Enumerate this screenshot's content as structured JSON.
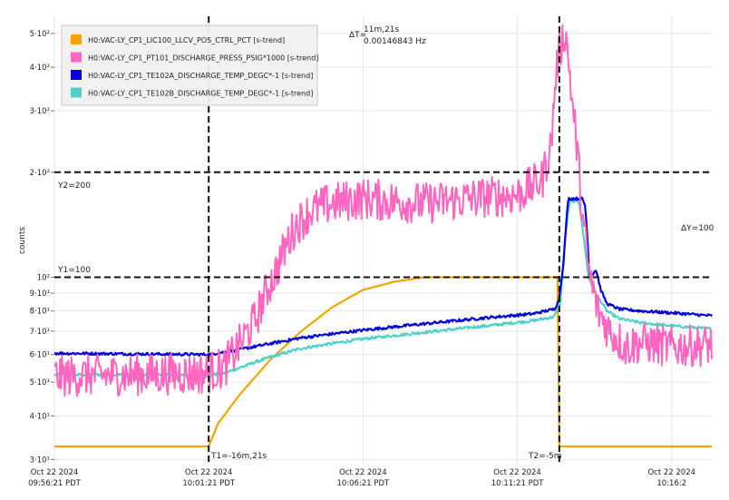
{
  "chart_data": {
    "type": "line",
    "ylabel": "counts",
    "y_scale": "log",
    "ylim": [
      29,
      560
    ],
    "xlim_minutes": [
      0,
      21.3
    ],
    "grid": true,
    "legend_position": "top-left",
    "y_ticks": [
      {
        "value": 30,
        "label": "3·10¹"
      },
      {
        "value": 40,
        "label": "4·10¹"
      },
      {
        "value": 50,
        "label": "5·10¹"
      },
      {
        "value": 60,
        "label": "6·10¹"
      },
      {
        "value": 70,
        "label": "7·10¹"
      },
      {
        "value": 80,
        "label": "8·10¹"
      },
      {
        "value": 90,
        "label": "9·10¹"
      },
      {
        "value": 100,
        "label": "10²"
      },
      {
        "value": 200,
        "label": "2·10²"
      },
      {
        "value": 300,
        "label": "3·10²"
      },
      {
        "value": 400,
        "label": "4·10²"
      },
      {
        "value": 500,
        "label": "5·10²"
      }
    ],
    "x_ticks": [
      {
        "minute": 0,
        "line1": "Oct 22 2024",
        "line2": "09:56:21 PDT"
      },
      {
        "minute": 5,
        "line1": "Oct 22 2024",
        "line2": "10:01:21 PDT"
      },
      {
        "minute": 10,
        "line1": "Oct 22 2024",
        "line2": "10:06:21 PDT"
      },
      {
        "minute": 15,
        "line1": "Oct 22 2024",
        "line2": "10:11:21 PDT"
      },
      {
        "minute": 20,
        "line1": "Oct 22 2024",
        "line2": "10:16:2"
      }
    ],
    "cursors": {
      "t1": {
        "minute": 5,
        "label": "T1=-16m,21s"
      },
      "t2": {
        "minute": 16.36,
        "label": "T2=-5m"
      },
      "y1": {
        "value": 100,
        "label": "Y1=100"
      },
      "y2": {
        "value": 200,
        "label": "Y2=200"
      },
      "delta_t_label": "ΔT=",
      "delta_t_value": "11m,21s",
      "delta_t_freq": "0.00146843 Hz",
      "delta_y_label": "ΔY=100"
    },
    "series": [
      {
        "name": "H0:VAC-LY_CP1_LIC100_LLCV_POS_CTRL_PCT [s-trend]",
        "color": "#f5a300",
        "points": [
          [
            0,
            32.7
          ],
          [
            5,
            32.7
          ],
          [
            5.3,
            38
          ],
          [
            6,
            46
          ],
          [
            7,
            58
          ],
          [
            8,
            70
          ],
          [
            9,
            82
          ],
          [
            10,
            92
          ],
          [
            11,
            97
          ],
          [
            12,
            100
          ],
          [
            16.3,
            100
          ],
          [
            16.36,
            32.7
          ],
          [
            21.3,
            32.7
          ]
        ]
      },
      {
        "name": "H0:VAC-LY_CP1_PT101_DISCHARGE_PRESS_PSIG*1000 [s-trend]",
        "color": "#ff66c0",
        "noise": 0.06,
        "points": [
          [
            0,
            52
          ],
          [
            4.9,
            53
          ],
          [
            5.5,
            55
          ],
          [
            6,
            64
          ],
          [
            6.5,
            75
          ],
          [
            7.2,
            105
          ],
          [
            7.8,
            140
          ],
          [
            8.3,
            155
          ],
          [
            9,
            163
          ],
          [
            10,
            168
          ],
          [
            11,
            165
          ],
          [
            12,
            163
          ],
          [
            13,
            166
          ],
          [
            14,
            170
          ],
          [
            15,
            172
          ],
          [
            15.8,
            190
          ],
          [
            16.1,
            240
          ],
          [
            16.3,
            420
          ],
          [
            16.55,
            510
          ],
          [
            16.8,
            300
          ],
          [
            17.1,
            150
          ],
          [
            17.3,
            105
          ],
          [
            17.6,
            80
          ],
          [
            18,
            70
          ],
          [
            18.5,
            63
          ],
          [
            19,
            65
          ],
          [
            20,
            63
          ],
          [
            21.3,
            64
          ]
        ]
      },
      {
        "name": "H0:VAC-LY_CP1_TE102A_DISCHARGE_TEMP_DEGC*-1 [s-trend]",
        "color": "#0000dd",
        "noise": 0.004,
        "points": [
          [
            0,
            60.5
          ],
          [
            5,
            60
          ],
          [
            5.5,
            61
          ],
          [
            6,
            62
          ],
          [
            7,
            64.5
          ],
          [
            8,
            67
          ],
          [
            10,
            70.5
          ],
          [
            12,
            73.5
          ],
          [
            14,
            76.5
          ],
          [
            15.5,
            78.5
          ],
          [
            16.2,
            81
          ],
          [
            16.35,
            86
          ],
          [
            16.5,
            110
          ],
          [
            16.65,
            168
          ],
          [
            17.1,
            168
          ],
          [
            17.2,
            160
          ],
          [
            17.3,
            115
          ],
          [
            17.35,
            100
          ],
          [
            17.55,
            105
          ],
          [
            17.7,
            92
          ],
          [
            17.9,
            84
          ],
          [
            18.3,
            81
          ],
          [
            19,
            80
          ],
          [
            20,
            79
          ],
          [
            21.3,
            77.5
          ]
        ]
      },
      {
        "name": "H0:VAC-LY_CP1_TE102B_DISCHARGE_TEMP_DEGC*-1 [s-trend]",
        "color": "#4ed2c8",
        "noise": 0.004,
        "points": [
          [
            0,
            52.5
          ],
          [
            5,
            52.5
          ],
          [
            5.5,
            53
          ],
          [
            6,
            55
          ],
          [
            7,
            59
          ],
          [
            8,
            62.5
          ],
          [
            10,
            66.5
          ],
          [
            12,
            69.5
          ],
          [
            14,
            72.5
          ],
          [
            15.5,
            75
          ],
          [
            16.2,
            77
          ],
          [
            16.4,
            85
          ],
          [
            16.55,
            130
          ],
          [
            16.7,
            165
          ],
          [
            17.0,
            165
          ],
          [
            17.1,
            140
          ],
          [
            17.3,
            100
          ],
          [
            17.6,
            88
          ],
          [
            17.9,
            80
          ],
          [
            18.3,
            76
          ],
          [
            19,
            74
          ],
          [
            20,
            72.5
          ],
          [
            21.3,
            71
          ]
        ]
      }
    ]
  }
}
